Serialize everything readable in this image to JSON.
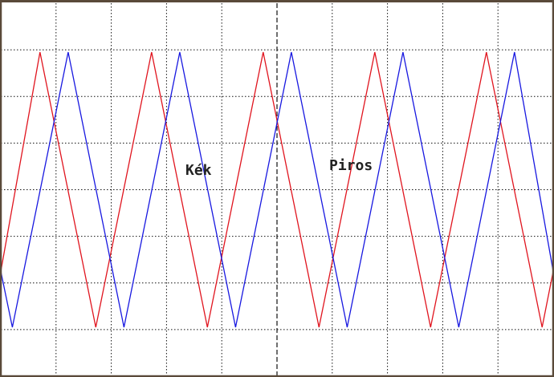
{
  "chart_data": {
    "type": "line",
    "title": "",
    "xlabel": "",
    "ylabel": "",
    "grid": true,
    "x_divisions": 10,
    "y_divisions": 8,
    "xlim": [
      0,
      10
    ],
    "ylim": [
      -4,
      4
    ],
    "annotations": [
      {
        "text": "Kék",
        "x": 3.6,
        "y": 0.48
      },
      {
        "text": "Piros",
        "x": 6.2,
        "y": 0.58
      }
    ],
    "series": [
      {
        "color": "#e0141e",
        "x": [
          0,
          0.71,
          1.72,
          2.73,
          3.74,
          4.75,
          5.76,
          6.77,
          7.78,
          8.79,
          9.8,
          10
        ],
        "y": [
          -1.75,
          2.95,
          -2.95,
          2.95,
          -2.95,
          2.95,
          -2.95,
          2.95,
          -2.95,
          2.95,
          -2.95,
          -1.75
        ]
      },
      {
        "color": "#1818e0",
        "x": [
          0,
          0.21,
          1.22,
          2.23,
          3.24,
          4.25,
          5.26,
          6.27,
          7.28,
          8.29,
          9.3,
          10
        ],
        "y": [
          -1.75,
          -2.95,
          2.95,
          -2.95,
          2.95,
          -2.95,
          2.95,
          -2.95,
          2.95,
          -2.95,
          2.95,
          -1.75
        ]
      }
    ]
  },
  "colors": {
    "background": "#ffffff",
    "frame": "#5a4a3a",
    "grid": "#111111"
  }
}
